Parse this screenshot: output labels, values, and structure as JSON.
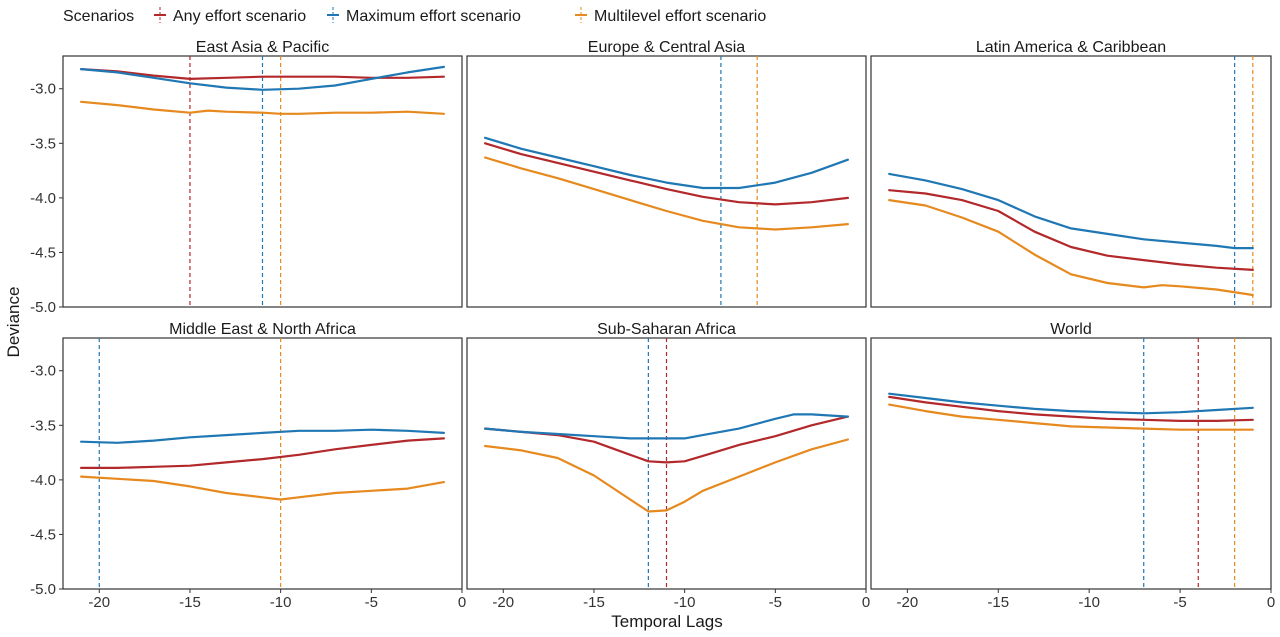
{
  "colors": {
    "any": "#b2282b",
    "max": "#1f77b4",
    "multi": "#e6891e",
    "panel_border": "#333333"
  },
  "legend": {
    "title": "Scenarios",
    "items": [
      {
        "key": "any",
        "label": "Any effort scenario"
      },
      {
        "key": "max",
        "label": "Maximum effort scenario"
      },
      {
        "key": "multi",
        "label": "Multilevel effort scenario"
      }
    ]
  },
  "chart_data": {
    "type": "line",
    "xlabel": "Temporal Lags",
    "ylabel": "Deviance",
    "xlim": [
      -22,
      0
    ],
    "ylim": [
      -5.0,
      -2.7
    ],
    "x_ticks": [
      -20,
      -15,
      -10,
      -5,
      0
    ],
    "x_tick_labels": [
      "-20",
      "-15",
      "-10",
      "-5",
      "0"
    ],
    "y_ticks": [
      -5.0,
      -4.5,
      -4.0,
      -3.5,
      -3.0
    ],
    "y_tick_labels": [
      "-5.0",
      "-4.5",
      "-4.0",
      "-3.5",
      "-3.0"
    ],
    "panels": [
      {
        "title": "East Asia & Pacific",
        "vlines": {
          "any": -15,
          "max": -11,
          "multi": -10
        },
        "series": {
          "any": {
            "x": [
              -21,
              -19,
              -17,
              -15,
              -13,
              -11,
              -9,
              -7,
              -5,
              -3,
              -1
            ],
            "y": [
              -2.82,
              -2.84,
              -2.88,
              -2.91,
              -2.9,
              -2.89,
              -2.89,
              -2.89,
              -2.9,
              -2.9,
              -2.89
            ]
          },
          "max": {
            "x": [
              -21,
              -19,
              -17,
              -15,
              -13,
              -11,
              -9,
              -7,
              -5,
              -3,
              -1
            ],
            "y": [
              -2.82,
              -2.85,
              -2.9,
              -2.95,
              -2.99,
              -3.01,
              -3.0,
              -2.97,
              -2.91,
              -2.85,
              -2.8
            ]
          },
          "multi": {
            "x": [
              -21,
              -19,
              -17,
              -15,
              -14,
              -13,
              -11,
              -10,
              -9,
              -7,
              -5,
              -3,
              -1
            ],
            "y": [
              -3.12,
              -3.15,
              -3.19,
              -3.22,
              -3.2,
              -3.21,
              -3.22,
              -3.23,
              -3.23,
              -3.22,
              -3.22,
              -3.21,
              -3.23
            ]
          }
        }
      },
      {
        "title": "Europe & Central Asia",
        "vlines": {
          "max": -8,
          "multi": -6
        },
        "series": {
          "any": {
            "x": [
              -21,
              -19,
              -17,
              -15,
              -13,
              -11,
              -9,
              -7,
              -5,
              -3,
              -1
            ],
            "y": [
              -3.5,
              -3.6,
              -3.68,
              -3.76,
              -3.84,
              -3.92,
              -3.99,
              -4.04,
              -4.06,
              -4.04,
              -4.0
            ]
          },
          "max": {
            "x": [
              -21,
              -19,
              -17,
              -15,
              -13,
              -11,
              -9,
              -7,
              -5,
              -3,
              -1
            ],
            "y": [
              -3.45,
              -3.55,
              -3.63,
              -3.71,
              -3.79,
              -3.86,
              -3.91,
              -3.91,
              -3.86,
              -3.77,
              -3.65
            ]
          },
          "multi": {
            "x": [
              -21,
              -19,
              -17,
              -15,
              -13,
              -11,
              -9,
              -7,
              -5,
              -3,
              -1
            ],
            "y": [
              -3.63,
              -3.73,
              -3.82,
              -3.92,
              -4.02,
              -4.12,
              -4.21,
              -4.27,
              -4.29,
              -4.27,
              -4.24
            ]
          }
        }
      },
      {
        "title": "Latin America & Caribbean",
        "vlines": {
          "max": -2,
          "multi": -1
        },
        "series": {
          "any": {
            "x": [
              -21,
              -19,
              -17,
              -15,
              -13,
              -11,
              -9,
              -7,
              -5,
              -3,
              -1
            ],
            "y": [
              -3.93,
              -3.96,
              -4.02,
              -4.12,
              -4.31,
              -4.45,
              -4.53,
              -4.57,
              -4.61,
              -4.64,
              -4.66
            ]
          },
          "max": {
            "x": [
              -21,
              -19,
              -17,
              -15,
              -13,
              -11,
              -9,
              -7,
              -5,
              -3,
              -2,
              -1
            ],
            "y": [
              -3.78,
              -3.84,
              -3.92,
              -4.02,
              -4.17,
              -4.28,
              -4.33,
              -4.38,
              -4.41,
              -4.44,
              -4.46,
              -4.46
            ]
          },
          "multi": {
            "x": [
              -21,
              -19,
              -17,
              -15,
              -13,
              -11,
              -9,
              -7,
              -6,
              -5,
              -3,
              -1
            ],
            "y": [
              -4.02,
              -4.07,
              -4.18,
              -4.31,
              -4.52,
              -4.7,
              -4.78,
              -4.82,
              -4.8,
              -4.81,
              -4.84,
              -4.89
            ]
          }
        }
      },
      {
        "title": "Middle East & North Africa",
        "vlines": {
          "max": -20,
          "multi": -10
        },
        "series": {
          "any": {
            "x": [
              -21,
              -19,
              -17,
              -15,
              -13,
              -11,
              -9,
              -7,
              -5,
              -3,
              -1
            ],
            "y": [
              -3.89,
              -3.89,
              -3.88,
              -3.87,
              -3.84,
              -3.81,
              -3.77,
              -3.72,
              -3.68,
              -3.64,
              -3.62
            ]
          },
          "max": {
            "x": [
              -21,
              -19,
              -17,
              -15,
              -13,
              -11,
              -9,
              -7,
              -5,
              -3,
              -1
            ],
            "y": [
              -3.65,
              -3.66,
              -3.64,
              -3.61,
              -3.59,
              -3.57,
              -3.55,
              -3.55,
              -3.54,
              -3.55,
              -3.57
            ]
          },
          "multi": {
            "x": [
              -21,
              -19,
              -17,
              -15,
              -13,
              -11,
              -10,
              -9,
              -7,
              -5,
              -3,
              -1
            ],
            "y": [
              -3.97,
              -3.99,
              -4.01,
              -4.06,
              -4.12,
              -4.16,
              -4.18,
              -4.16,
              -4.12,
              -4.1,
              -4.08,
              -4.02
            ]
          }
        }
      },
      {
        "title": "Sub-Saharan Africa",
        "vlines": {
          "any": -11,
          "max": -12
        },
        "series": {
          "any": {
            "x": [
              -21,
              -19,
              -17,
              -15,
              -13,
              -12,
              -11,
              -10,
              -9,
              -7,
              -5,
              -3,
              -1
            ],
            "y": [
              -3.53,
              -3.56,
              -3.59,
              -3.65,
              -3.77,
              -3.83,
              -3.84,
              -3.83,
              -3.78,
              -3.68,
              -3.6,
              -3.5,
              -3.42
            ]
          },
          "max": {
            "x": [
              -21,
              -19,
              -17,
              -15,
              -13,
              -11,
              -10,
              -9,
              -7,
              -5,
              -4,
              -3,
              -1
            ],
            "y": [
              -3.53,
              -3.56,
              -3.58,
              -3.6,
              -3.62,
              -3.62,
              -3.62,
              -3.59,
              -3.53,
              -3.44,
              -3.4,
              -3.4,
              -3.42
            ]
          },
          "multi": {
            "x": [
              -21,
              -19,
              -17,
              -15,
              -13,
              -12,
              -11,
              -10,
              -9,
              -7,
              -5,
              -3,
              -1
            ],
            "y": [
              -3.69,
              -3.73,
              -3.8,
              -3.96,
              -4.18,
              -4.29,
              -4.28,
              -4.2,
              -4.1,
              -3.97,
              -3.84,
              -3.72,
              -3.63
            ]
          }
        }
      },
      {
        "title": "World",
        "vlines": {
          "any": -4,
          "max": -7,
          "multi": -2
        },
        "series": {
          "any": {
            "x": [
              -21,
              -19,
              -17,
              -15,
              -13,
              -11,
              -9,
              -7,
              -5,
              -3,
              -1
            ],
            "y": [
              -3.24,
              -3.29,
              -3.33,
              -3.37,
              -3.4,
              -3.42,
              -3.44,
              -3.45,
              -3.46,
              -3.46,
              -3.45
            ]
          },
          "max": {
            "x": [
              -21,
              -19,
              -17,
              -15,
              -13,
              -11,
              -9,
              -7,
              -5,
              -3,
              -1
            ],
            "y": [
              -3.21,
              -3.25,
              -3.29,
              -3.32,
              -3.35,
              -3.37,
              -3.38,
              -3.39,
              -3.38,
              -3.36,
              -3.34
            ]
          },
          "multi": {
            "x": [
              -21,
              -19,
              -17,
              -15,
              -13,
              -11,
              -9,
              -7,
              -5,
              -3,
              -1
            ],
            "y": [
              -3.31,
              -3.37,
              -3.42,
              -3.45,
              -3.48,
              -3.51,
              -3.52,
              -3.53,
              -3.54,
              -3.54,
              -3.54
            ]
          }
        }
      }
    ]
  }
}
